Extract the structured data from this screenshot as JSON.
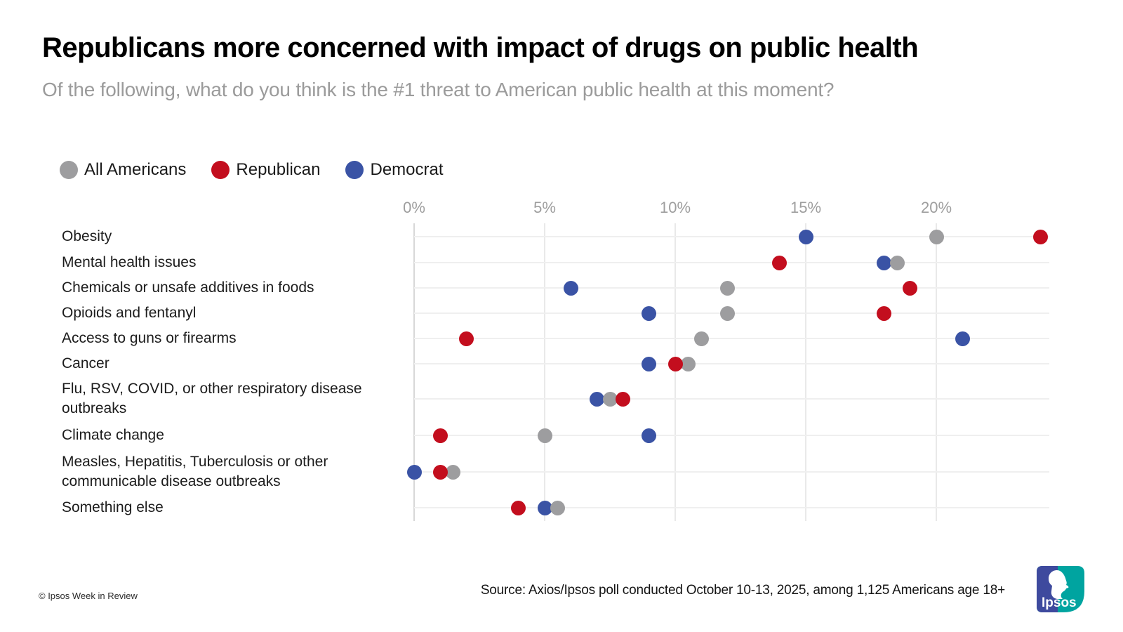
{
  "title": "Republicans more concerned with impact of drugs on public health",
  "subtitle": "Of the following, what do you think is the #1 threat to American public health at this moment?",
  "chart_data": {
    "type": "scatter",
    "title": "Republicans more concerned with impact of drugs on public health",
    "categories": [
      "Obesity",
      "Mental health issues",
      "Chemicals or unsafe additives in foods",
      "Opioids and fentanyl",
      "Access to guns or firearms",
      "Cancer",
      "Flu, RSV, COVID, or other respiratory disease outbreaks",
      "Climate change",
      "Measles, Hepatitis, Tuberculosis or other communicable disease outbreaks",
      "Something else"
    ],
    "series": [
      {
        "name": "All Americans",
        "color": "#9d9d9f",
        "values": [
          20,
          18.5,
          12,
          12,
          11,
          10.5,
          7.5,
          5,
          1.5,
          5.5
        ]
      },
      {
        "name": "Republican",
        "color": "#c30e1e",
        "values": [
          24,
          14,
          19,
          18,
          2,
          10,
          8,
          1,
          1,
          4
        ]
      },
      {
        "name": "Democrat",
        "color": "#3a53a5",
        "values": [
          15,
          18,
          6,
          9,
          21,
          9,
          7,
          9,
          0,
          5
        ]
      }
    ],
    "x_ticks": [
      "0%",
      "5%",
      "10%",
      "15%",
      "20%"
    ],
    "x_tick_values": [
      0,
      5,
      10,
      15,
      20
    ],
    "xlim": [
      0,
      24.3
    ],
    "unit": "%",
    "grid": true,
    "legend_position": "top-left"
  },
  "footer": {
    "source": "Source: Axios/Ipsos poll conducted October 10-13, 2025, among 1,125 Americans age 18+",
    "copyright": "© Ipsos Week in Review",
    "logo_text": "Ipsos"
  },
  "logo_colors": {
    "indigo": "#3e4a9e",
    "teal": "#00a4a0"
  }
}
